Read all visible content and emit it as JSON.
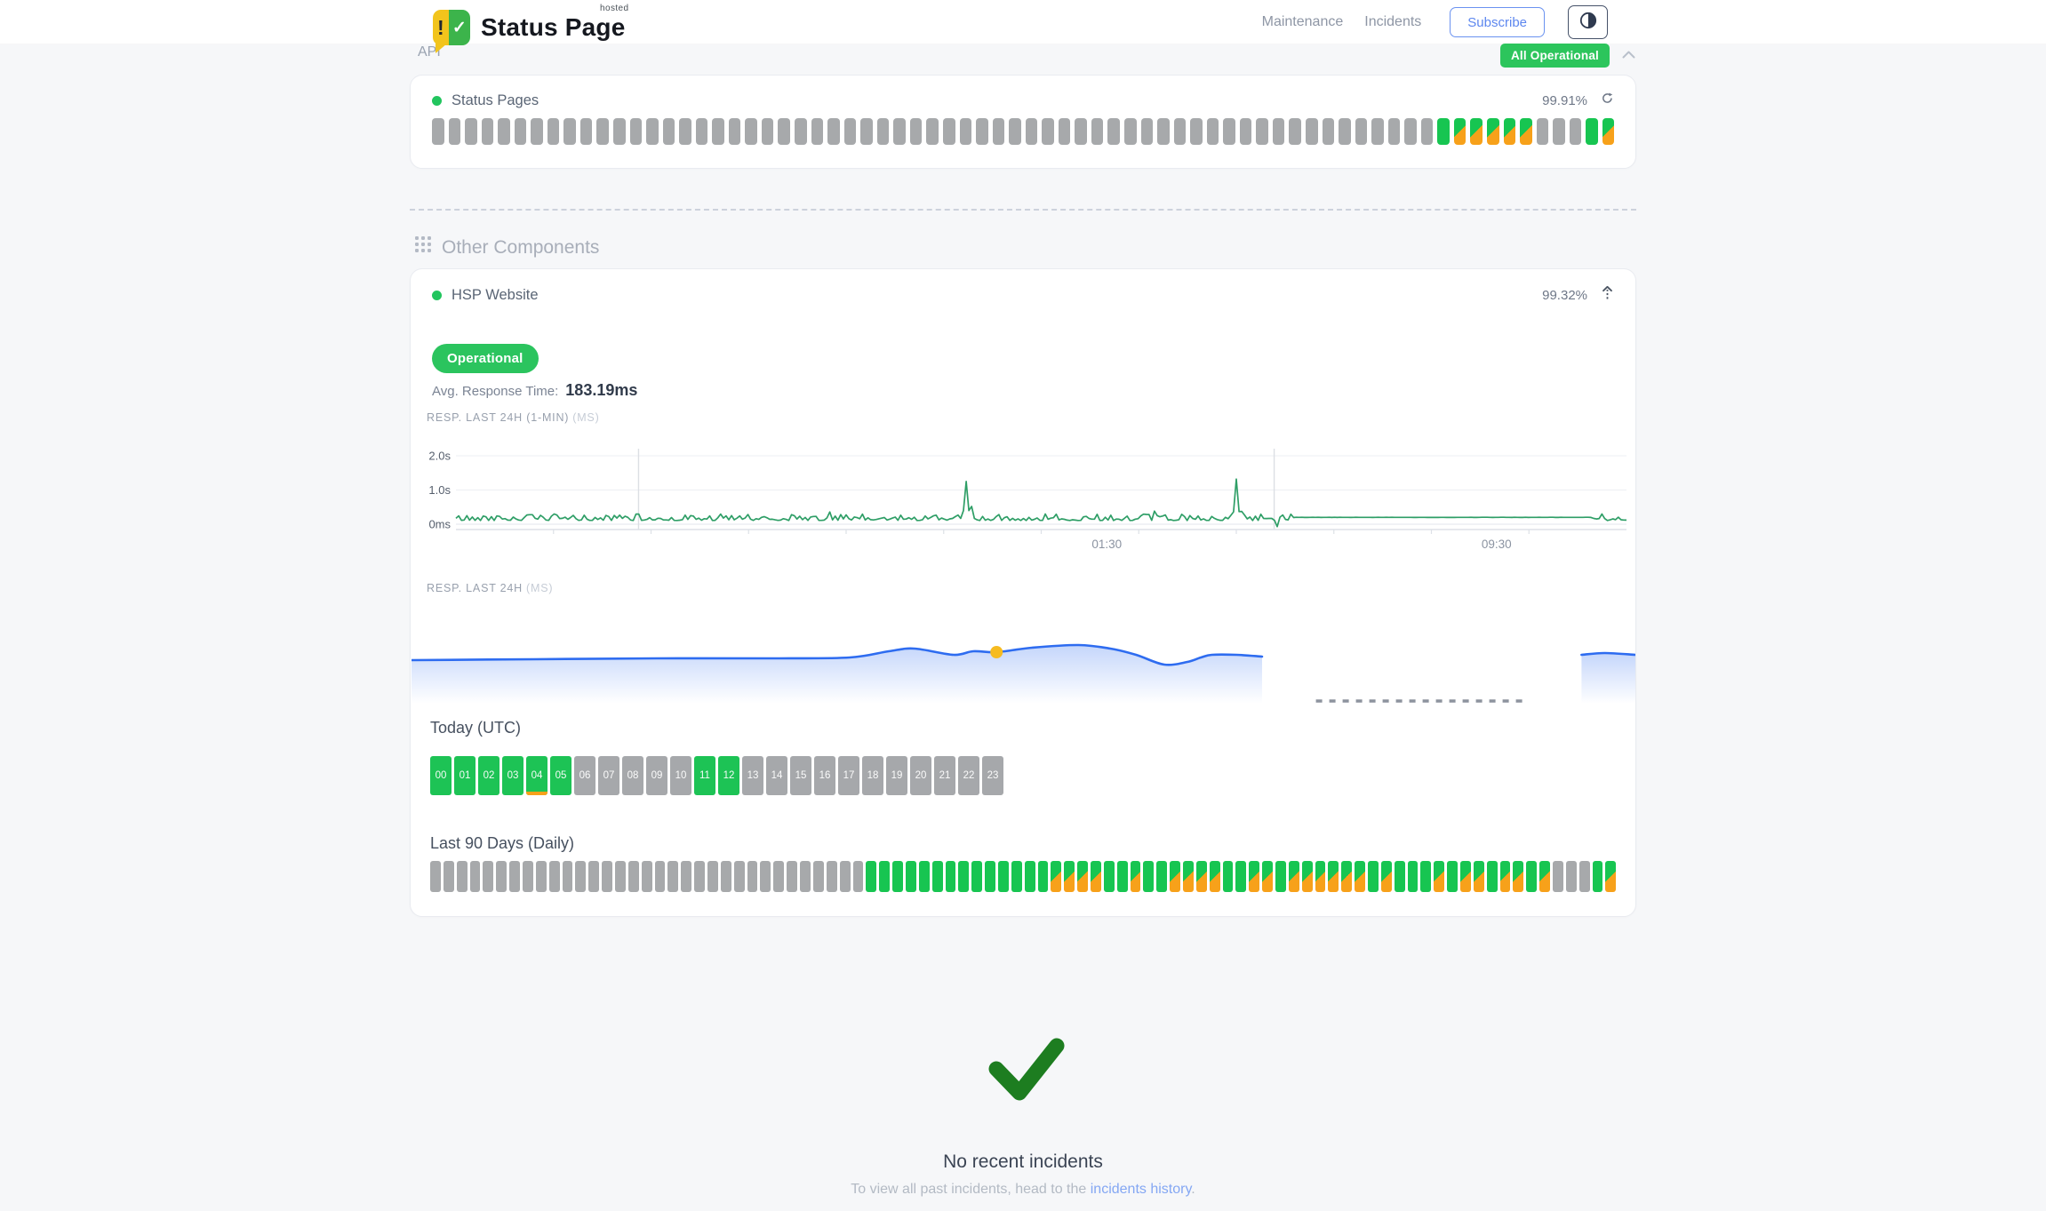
{
  "header": {
    "logo": {
      "text": "Status Page",
      "superscript": "hosted",
      "icon_exclaim": "!",
      "icon_check": "✓"
    },
    "nav_items": [
      "Maintenance",
      "Incidents"
    ],
    "subscribe_label": "Subscribe",
    "overall_status": "All Operational"
  },
  "api_section": {
    "title": "API",
    "component": {
      "name": "Status Pages",
      "uptime": "99.91%"
    },
    "uptime_pattern": "xxxxxxxxxxxxxxxxxxxxxxxxxxxxxxxxxxxxxxxxxxxxxxxxxxxxxxxxxxxxxgsssssxxxgs"
  },
  "other_section": {
    "title": "Other Components",
    "component": {
      "name": "HSP Website",
      "uptime": "99.32%",
      "status": "Operational",
      "avg_label": "Avg. Response Time:",
      "avg_value": "183.19ms"
    },
    "chart1_label": {
      "main": "RESP. LAST 24H (1-MIN)",
      "unit": "(MS)"
    },
    "chart2_label": {
      "main": "RESP. LAST 24H",
      "unit": "(MS)"
    },
    "today": {
      "title": "Today (UTC)",
      "hours": [
        "00",
        "01",
        "02",
        "03",
        "04",
        "05",
        "06",
        "07",
        "08",
        "09",
        "10",
        "11",
        "12",
        "13",
        "14",
        "15",
        "16",
        "17",
        "18",
        "19",
        "20",
        "21",
        "22",
        "23"
      ],
      "green_hours": [
        0,
        1,
        2,
        3,
        4,
        5,
        11,
        12
      ],
      "marker_hour": 4
    },
    "last90": {
      "title": "Last 90 Days (Daily)",
      "pattern": "xxxxxxxxxxxxxxxxxxxxxxxxxxxxxxxxxggggggggggggggssssggsggssssggssgssssssgsgggsgssgssgsxxxgs"
    }
  },
  "incidents": {
    "title": "No recent incidents",
    "text_prefix": "To view all past incidents, head to the ",
    "link": "incidents history",
    "suffix": "."
  },
  "chart_data": [
    {
      "type": "line",
      "title": "RESP. LAST 24H (1-MIN) (MS)",
      "ylim_ms": [
        0,
        2000
      ],
      "yticks": [
        {
          "label": "2.0s",
          "ms": 2000
        },
        {
          "label": "1.0s",
          "ms": 1000
        },
        {
          "label": "0ms",
          "ms": 0
        }
      ],
      "xticks": [
        {
          "label": "01:30",
          "f": 0.556
        },
        {
          "label": "09:30",
          "f": 0.889
        }
      ],
      "separators_f": [
        0.156,
        0.699
      ],
      "baseline_ms": [
        110,
        300
      ],
      "spikes": [
        {
          "f": 0.437,
          "ms": 1250
        },
        {
          "f": 0.667,
          "ms": 1320
        }
      ],
      "dips": [
        {
          "f": 0.702,
          "ms": -70
        }
      ],
      "flat": {
        "from_f": 0.716,
        "to_f": 0.97,
        "ms": 200
      },
      "color": "#2e9e66",
      "grid": true,
      "legend": "none"
    },
    {
      "type": "area",
      "title": "RESP. LAST 24H (MS)",
      "color": "#2e6cf0",
      "marker": {
        "f": 0.478,
        "y": 53,
        "color": "#f6bb20"
      },
      "segments": [
        {
          "points": [
            [
              0,
              62
            ],
            [
              0.1,
              61
            ],
            [
              0.2,
              60
            ],
            [
              0.3,
              60
            ],
            [
              0.358,
              59
            ],
            [
              0.39,
              52
            ],
            [
              0.411,
              49
            ],
            [
              0.443,
              56
            ],
            [
              0.459,
              52
            ],
            [
              0.478,
              53
            ],
            [
              0.507,
              48
            ],
            [
              0.545,
              45
            ],
            [
              0.571,
              49
            ],
            [
              0.592,
              56
            ],
            [
              0.615,
              67
            ],
            [
              0.634,
              64
            ],
            [
              0.645,
              59
            ],
            [
              0.654,
              56
            ],
            [
              0.674,
              56
            ],
            [
              0.695,
              58
            ]
          ]
        },
        {
          "points": [
            [
              0.956,
              56
            ],
            [
              0.975,
              54
            ],
            [
              1.0,
              56
            ]
          ]
        }
      ],
      "gap_dash": {
        "from_f": 0.739,
        "to_f": 0.911,
        "y": 108
      },
      "legend": "none"
    }
  ],
  "colors": {
    "bar_green": "#17c551",
    "bar_orange": "#f7a11a",
    "bar_gray": "#a7a9ab",
    "badge_green": "#2bc45e",
    "status_dot_green": "#22c55e",
    "chart_green": "#2e9e66",
    "chart_blue": "#2e6cf0",
    "marker_yellow": "#f6bb20",
    "accent_blue": "#5d87ef",
    "check_green": "#1d7d20"
  }
}
